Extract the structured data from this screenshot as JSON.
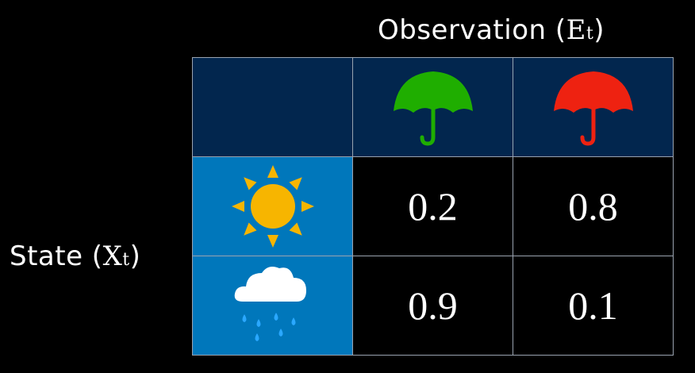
{
  "observation_label": {
    "text": "Observation (",
    "var": "E",
    "sub": "t",
    "close": ")"
  },
  "state_label": {
    "text": "State (",
    "var": "X",
    "sub": "t",
    "close": ")"
  },
  "columns": [
    {
      "icon": "umbrella-icon",
      "color": "#1fae00"
    },
    {
      "icon": "umbrella-icon",
      "color": "#ee2211"
    }
  ],
  "rows": [
    {
      "icon": "sun-icon",
      "values": [
        "0.2",
        "0.8"
      ]
    },
    {
      "icon": "rain-cloud-icon",
      "values": [
        "0.9",
        "0.1"
      ]
    }
  ],
  "colors": {
    "header_bg": "#02264e",
    "state_bg": "#0077bb",
    "sun": "#f7b500",
    "cloud": "#ffffff",
    "rain": "#2aa8ff"
  }
}
